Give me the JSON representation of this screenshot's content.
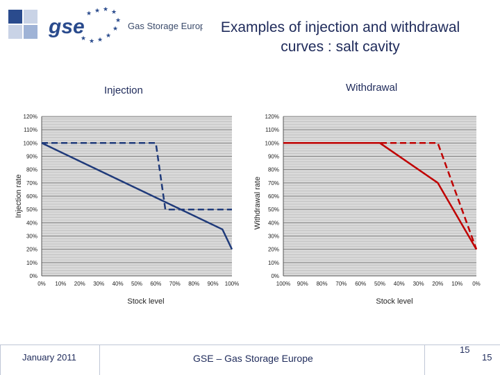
{
  "header": {
    "brand_short": "gse",
    "brand_name": "Gas Storage Europe",
    "title_line1": "Examples of injection and withdrawal",
    "title_line2": "curves : salt cavity",
    "colors": {
      "navy": "#1e2a5a",
      "accent_blue": "#2a4b8d",
      "light_blue": "#9fb3d6"
    }
  },
  "footer": {
    "date": "January 2011",
    "organization": "GSE – Gas Storage Europe",
    "page_number": "15",
    "page_number_repeat": "15"
  },
  "chart_data": [
    {
      "type": "line",
      "title": "Injection",
      "xlabel": "Stock level",
      "ylabel": "Injection rate",
      "xlim": [
        0,
        100
      ],
      "ylim": [
        0,
        120
      ],
      "grid": true,
      "x_tick_labels": [
        "0%",
        "10%",
        "20%",
        "30%",
        "40%",
        "50%",
        "60%",
        "70%",
        "80%",
        "90%",
        "100%"
      ],
      "y_tick_labels": [
        "0%",
        "10%",
        "20%",
        "30%",
        "40%",
        "50%",
        "60%",
        "70%",
        "80%",
        "90%",
        "100%",
        "110%",
        "120%"
      ],
      "series": [
        {
          "name": "solid",
          "style": "solid",
          "color": "#1f3a7a",
          "x": [
            0,
            95,
            100
          ],
          "y": [
            100,
            35,
            20
          ]
        },
        {
          "name": "dashed",
          "style": "dashed",
          "color": "#1f3a7a",
          "x": [
            0,
            60,
            65,
            100
          ],
          "y": [
            100,
            100,
            50,
            50
          ]
        }
      ]
    },
    {
      "type": "line",
      "title": "Withdrawal",
      "xlabel": "Stock level",
      "ylabel": "Withdrawal rate",
      "xlim": [
        100,
        0
      ],
      "ylim": [
        0,
        120
      ],
      "grid": true,
      "x_tick_labels": [
        "100%",
        "90%",
        "80%",
        "70%",
        "60%",
        "50%",
        "40%",
        "30%",
        "20%",
        "10%",
        "0%"
      ],
      "y_tick_labels": [
        "0%",
        "10%",
        "20%",
        "30%",
        "40%",
        "50%",
        "60%",
        "70%",
        "80%",
        "90%",
        "100%",
        "110%",
        "120%"
      ],
      "series": [
        {
          "name": "solid",
          "style": "solid",
          "color": "#c00000",
          "x": [
            100,
            50,
            20,
            0
          ],
          "y": [
            100,
            100,
            70,
            20
          ]
        },
        {
          "name": "dashed",
          "style": "dashed",
          "color": "#c00000",
          "x": [
            100,
            20,
            0
          ],
          "y": [
            100,
            100,
            20
          ]
        }
      ]
    }
  ]
}
